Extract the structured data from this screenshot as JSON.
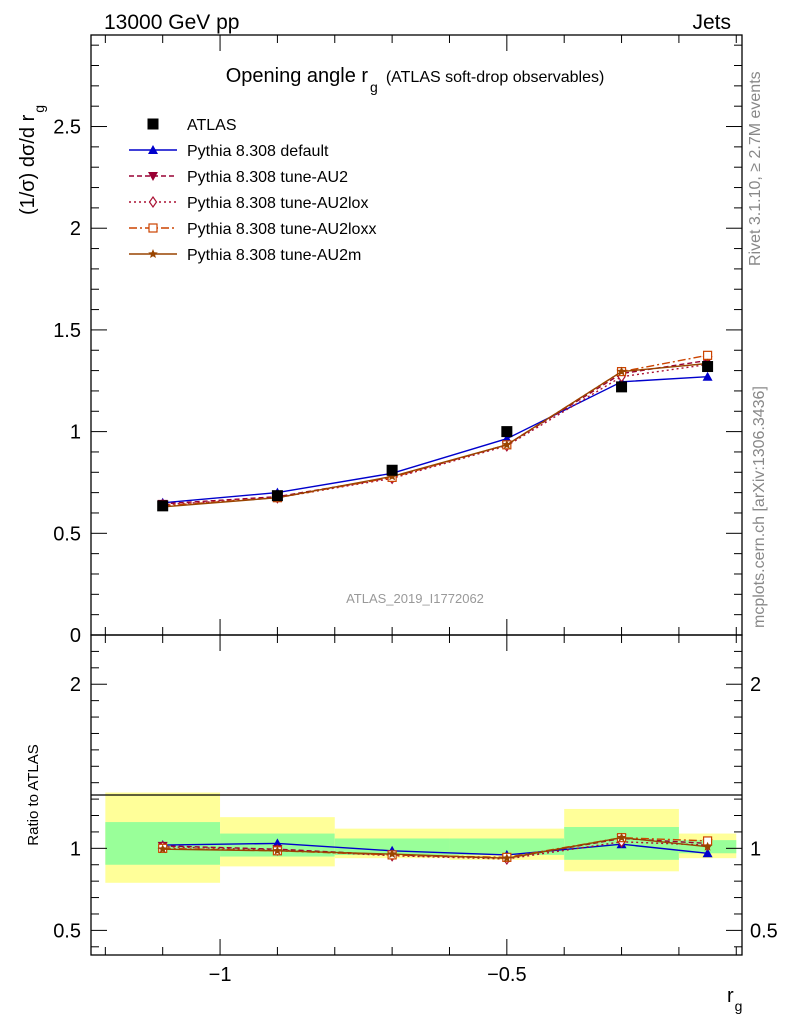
{
  "header": {
    "left": "13000 GeV pp",
    "right": "Jets"
  },
  "side": {
    "rivet": "Rivet 3.1.10, ≥ 2.7M events",
    "mcplots": "mcplots.cern.ch [arXiv:1306.3436]"
  },
  "chart_data": [
    {
      "type": "line",
      "title_main": "Opening angle r",
      "title_sub": "g",
      "title_extra": "(ATLAS soft-drop observables)",
      "ylabel_main": "(1/σ) dσ/d r",
      "ylabel_sub": "g",
      "watermark": "ATLAS_2019_I1772062",
      "ylim": [
        0,
        2.95
      ],
      "yticks": [
        {
          "v": 0,
          "label": "0"
        },
        {
          "v": 0.5,
          "label": "0.5"
        },
        {
          "v": 1,
          "label": "1"
        },
        {
          "v": 1.5,
          "label": "1.5"
        },
        {
          "v": 2,
          "label": "2"
        },
        {
          "v": 2.5,
          "label": "2.5"
        }
      ],
      "x": [
        -1.1,
        -0.9,
        -0.7,
        -0.5,
        -0.3,
        -0.15
      ],
      "data": {
        "name": "ATLAS",
        "values": [
          0.635,
          0.685,
          0.81,
          1.0,
          1.22,
          1.32
        ]
      },
      "series": [
        {
          "name": "Pythia 8.308 default",
          "color": "#0000cc",
          "marker": "tri-up",
          "dash": "",
          "values": [
            0.65,
            0.7,
            0.795,
            0.965,
            1.245,
            1.27
          ]
        },
        {
          "name": "Pythia 8.308 tune-AU2",
          "color": "#990033",
          "marker": "tri-down",
          "dash": "5,3",
          "values": [
            0.645,
            0.68,
            0.775,
            0.935,
            1.285,
            1.35
          ]
        },
        {
          "name": "Pythia 8.308 tune-AU2lox",
          "color": "#aa1133",
          "marker": "diamond",
          "dash": "2,3",
          "values": [
            0.64,
            0.675,
            0.77,
            0.93,
            1.27,
            1.33
          ]
        },
        {
          "name": "Pythia 8.308 tune-AU2loxx",
          "color": "#cc4400",
          "marker": "square",
          "dash": "8,3,2,3",
          "values": [
            0.635,
            0.675,
            0.775,
            0.935,
            1.295,
            1.375
          ]
        },
        {
          "name": "Pythia 8.308 tune-AU2m",
          "color": "#994400",
          "marker": "star",
          "dash": "",
          "values": [
            0.63,
            0.675,
            0.78,
            0.935,
            1.295,
            1.335
          ]
        }
      ]
    },
    {
      "type": "line",
      "ylabel": "Ratio to ATLAS",
      "xlabel_main": "r",
      "xlabel_sub": "g",
      "xlim": [
        -1.225,
        -0.09
      ],
      "ylim": [
        0.35,
        2.3
      ],
      "xticks": [
        {
          "v": -1,
          "label": "−1"
        },
        {
          "v": -0.5,
          "label": "−0.5"
        }
      ],
      "yticks": [
        {
          "v": 0.5,
          "label": "0.5"
        },
        {
          "v": 1,
          "label": "1"
        },
        {
          "v": 2,
          "label": "2"
        }
      ],
      "bands": [
        {
          "x0": -1.2,
          "x1": -1.0,
          "y_lo": 0.79,
          "y_hi": 1.34,
          "g_lo": 0.9,
          "g_hi": 1.16
        },
        {
          "x0": -1.0,
          "x1": -0.8,
          "y_lo": 0.89,
          "y_hi": 1.19,
          "g_lo": 0.95,
          "g_hi": 1.09
        },
        {
          "x0": -0.8,
          "x1": -0.6,
          "y_lo": 0.94,
          "y_hi": 1.12,
          "g_lo": 0.96,
          "g_hi": 1.06
        },
        {
          "x0": -0.6,
          "x1": -0.4,
          "y_lo": 0.93,
          "y_hi": 1.12,
          "g_lo": 0.96,
          "g_hi": 1.06
        },
        {
          "x0": -0.4,
          "x1": -0.2,
          "y_lo": 0.86,
          "y_hi": 1.24,
          "g_lo": 0.93,
          "g_hi": 1.13
        },
        {
          "x0": -0.2,
          "x1": -0.1,
          "y_lo": 0.94,
          "y_hi": 1.09,
          "g_lo": 0.97,
          "g_hi": 1.05
        }
      ],
      "series_ratio": [
        [
          1.02,
          1.03,
          0.985,
          0.96,
          1.025,
          0.97
        ],
        [
          1.015,
          0.995,
          0.96,
          0.94,
          1.06,
          1.03
        ],
        [
          1.01,
          0.99,
          0.955,
          0.935,
          1.04,
          1.02
        ],
        [
          1.0,
          0.985,
          0.96,
          0.945,
          1.065,
          1.045
        ],
        [
          0.995,
          0.985,
          0.965,
          0.94,
          1.065,
          1.01
        ]
      ]
    }
  ]
}
